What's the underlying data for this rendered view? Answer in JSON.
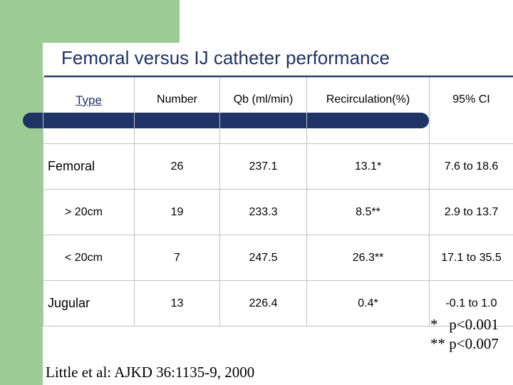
{
  "title": "Femoral versus IJ catheter performance",
  "table": {
    "headers": [
      "Type",
      "Number",
      "Qb (ml/min)",
      "Recirculation(%)",
      "95% CI"
    ],
    "rows": [
      {
        "type": "Femoral",
        "number": "26",
        "qb": "237.1",
        "recirc": "13.1*",
        "ci": "7.6 to 18.6"
      },
      {
        "type": "> 20cm",
        "number": "19",
        "qb": "233.3",
        "recirc": "8.5**",
        "ci": "2.9 to 13.7"
      },
      {
        "type": "< 20cm",
        "number": "7",
        "qb": "247.5",
        "recirc": "26.3**",
        "ci": "17.1 to 35.5"
      },
      {
        "type": "Jugular",
        "number": "13",
        "qb": "226.4",
        "recirc": "0.4*",
        "ci": "-0.1 to 1.0"
      }
    ]
  },
  "footnotes": [
    "*   p<0.001",
    "** p<0.007"
  ],
  "citation": "Little et al: AJKD 36:1135-9, 2000",
  "colors": {
    "accent_green": "#9ccc94",
    "navy": "#1f3366"
  }
}
